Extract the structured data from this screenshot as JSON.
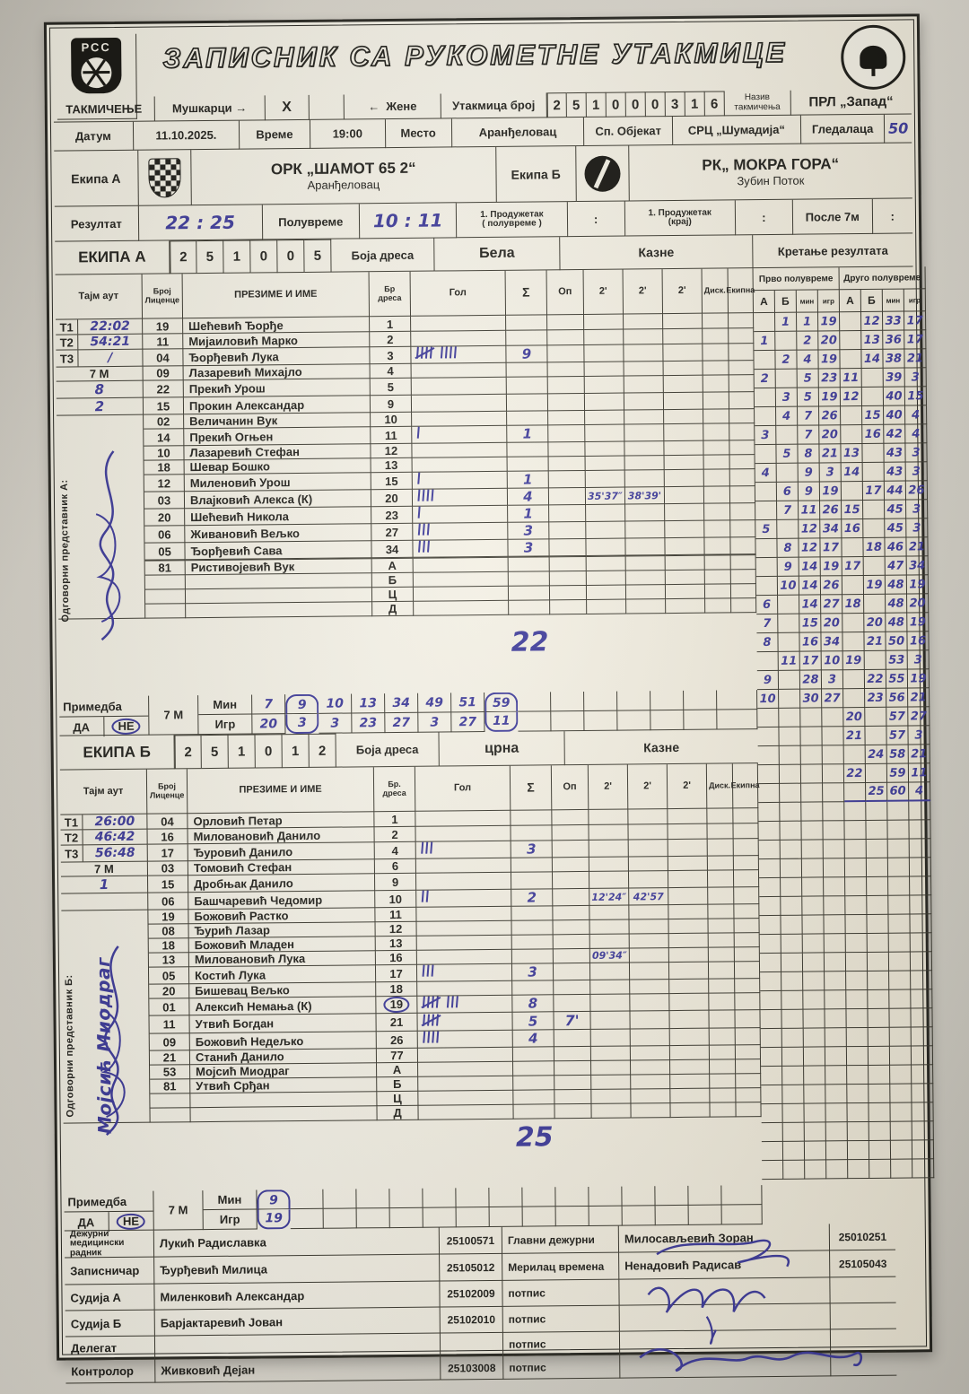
{
  "header": {
    "title": "ЗАПИСНИК СА РУКОМЕТНЕ УТАКМИЦЕ",
    "org_abbr": "РСС",
    "league_logo": "league-round-logo"
  },
  "competition_row": {
    "label": "ТАКМИЧЕЊЕ",
    "men_label": "Мушкарци",
    "arrow_right": "→",
    "men_mark": "X",
    "arrow_left": "←",
    "women_label": "Жене",
    "match_no_label": "Утакмица број",
    "match_no_digits": [
      "2",
      "5",
      "1",
      "0",
      "0",
      "0",
      "3",
      "1",
      "6"
    ],
    "comp_name_label1": "Назив",
    "comp_name_label2": "такмичења",
    "comp_name_value": "ПРЛ „Запад“"
  },
  "info_row": {
    "date_label": "Датум",
    "date": "11.10.2025.",
    "time_label": "Време",
    "time": "19:00",
    "place_label": "Место",
    "place": "Аранђеловац",
    "venue_label": "Сп. Објекат",
    "venue": "СРЦ „Шумадија“",
    "spectators_label": "Гледалаца",
    "spectators": "50"
  },
  "teams_row": {
    "team_a_label": "Екипа А",
    "team_a_name": "ОРК „ШАМОТ 65 2“",
    "team_a_city": "Аранђеловац",
    "team_b_label": "Екипа Б",
    "team_b_name": "РК„ МОКРА ГОРА“",
    "team_b_city": "Зубин Поток"
  },
  "result_row": {
    "label": "Резултат",
    "final": "22 : 25",
    "half_label": "Полувреме",
    "half": "10 : 11",
    "ot1_label": "1. Продужетак",
    "ot1_sub": "( полувреме )",
    "ot1": ":",
    "ot2_label": "1. Продужетак",
    "ot2_sub": "(крај)",
    "ot2": ":",
    "after7_label": "После 7м",
    "after7": ":"
  },
  "hdr": {
    "tajm": "Тајм аут",
    "lic1": "Број",
    "lic2": "Лиценце",
    "name": "ПРЕЗИМЕ И ИМЕ",
    "gol": "Гол",
    "sum": "Σ",
    "op": "Оп",
    "p2": "2'",
    "disk": "Диск.",
    "ekipna": "Екипна",
    "first": "Прво полувреме",
    "second": "Друго полувреме",
    "pcols": [
      "А",
      "Б",
      "мин",
      "игр"
    ]
  },
  "note_labels": {
    "label": "Примедба",
    "da": "ДА",
    "ne": "НЕ",
    "m7": "7 М",
    "min": "Мин",
    "igr": "Игр"
  },
  "team_a": {
    "band_label": "ЕКИПА А",
    "code_digits": [
      "2",
      "5",
      "1",
      "0",
      "0",
      "5"
    ],
    "jersey_label": "Боја дреса",
    "jersey_color": "Бела",
    "penalties_label": "Казне",
    "progress_label": "Кретање резултата",
    "dres_label1": "Бр",
    "dres_label2": "дреса",
    "timeouts": [
      {
        "tag": "Т1",
        "value": "22:02"
      },
      {
        "tag": "Т2",
        "value": "54:21"
      },
      {
        "tag": "Т3",
        "value": "∕"
      }
    ],
    "seven_m_label": "7 М",
    "seven_m": [
      "8",
      "2"
    ],
    "rep_label": "Одговорни представник А:",
    "total": "22",
    "players": [
      {
        "lic": "19",
        "name": "Шећевић Ђорђе",
        "dres": "1",
        "goals": 0,
        "sum": ""
      },
      {
        "lic": "11",
        "name": "Мијаиловић Марко",
        "dres": "2",
        "goals": 0,
        "sum": ""
      },
      {
        "lic": "04",
        "name": "Ђорђевић Лука",
        "dres": "3",
        "goals": 9,
        "sum": "9"
      },
      {
        "lic": "09",
        "name": "Лазаревић Михајло",
        "dres": "4",
        "goals": 0,
        "sum": ""
      },
      {
        "lic": "22",
        "name": "Прекић Урош",
        "dres": "5",
        "goals": 0,
        "sum": ""
      },
      {
        "lic": "15",
        "name": "Прокин Александар",
        "dres": "9",
        "goals": 0,
        "sum": ""
      },
      {
        "lic": "02",
        "name": "Величанин Вук",
        "dres": "10",
        "goals": 0,
        "sum": ""
      },
      {
        "lic": "14",
        "name": "Прекић Огњен",
        "dres": "11",
        "goals": 1,
        "sum": "1"
      },
      {
        "lic": "10",
        "name": "Лазаревић Стефан",
        "dres": "12",
        "goals": 0,
        "sum": ""
      },
      {
        "lic": "18",
        "name": "Шевар Бошко",
        "dres": "13",
        "goals": 0,
        "sum": ""
      },
      {
        "lic": "12",
        "name": "Миленовић Урош",
        "dres": "15",
        "goals": 1,
        "sum": "1"
      },
      {
        "lic": "03",
        "name": "Влајковић Алекса   (К)",
        "dres": "20",
        "goals": 4,
        "sum": "4",
        "p2": [
          "35'37″",
          "38'39'",
          ""
        ]
      },
      {
        "lic": "20",
        "name": "Шећевић Никола",
        "dres": "23",
        "goals": 1,
        "sum": "1"
      },
      {
        "lic": "06",
        "name": "Живановић Вељко",
        "dres": "27",
        "goals": 3,
        "sum": "3"
      },
      {
        "lic": "05",
        "name": "Ђорђевић Сава",
        "dres": "34",
        "goals": 3,
        "sum": "3"
      },
      {
        "lic": "",
        "name": "",
        "dres": "",
        "goals": 0,
        "sum": ""
      },
      {
        "lic": "81",
        "name": "Ристивојевић Вук",
        "dres": "А",
        "goals": 0,
        "sum": ""
      },
      {
        "lic": "",
        "name": "",
        "dres": "Б",
        "goals": 0,
        "sum": ""
      },
      {
        "lic": "",
        "name": "",
        "dres": "Ц",
        "goals": 0,
        "sum": ""
      },
      {
        "lic": "",
        "name": "",
        "dres": "Д",
        "goals": 0,
        "sum": ""
      }
    ],
    "note": {
      "min": [
        "7",
        "9",
        "10",
        "13",
        "34",
        "49",
        "51",
        "59"
      ],
      "igr": [
        "20",
        "3",
        "3",
        "23",
        "27",
        "3",
        "27",
        "11"
      ],
      "circled": [
        1,
        7
      ],
      "ne_circled": true
    }
  },
  "team_b": {
    "band_label": "ЕКИПА Б",
    "code_digits": [
      "2",
      "5",
      "1",
      "0",
      "1",
      "2"
    ],
    "jersey_label": "Боја дреса",
    "jersey_color": "црна",
    "penalties_label": "Казне",
    "dres_label1": "Бр.",
    "dres_label2": "дреса",
    "timeouts": [
      {
        "tag": "Т1",
        "value": "26:00"
      },
      {
        "tag": "Т2",
        "value": "46:42"
      },
      {
        "tag": "Т3",
        "value": "56:48"
      }
    ],
    "seven_m_label": "7 М",
    "seven_m": [
      "1",
      ""
    ],
    "rep_label": "Одговорни представник Б:",
    "rep_signed_name": "Мојсић Миодраг",
    "total": "25",
    "players": [
      {
        "lic": "04",
        "name": "Орловић Петар",
        "dres": "1",
        "goals": 0,
        "sum": ""
      },
      {
        "lic": "16",
        "name": "Миловановић Данило",
        "dres": "2",
        "goals": 0,
        "sum": ""
      },
      {
        "lic": "17",
        "name": "Ђуровић Данило",
        "dres": "4",
        "goals": 3,
        "sum": "3"
      },
      {
        "lic": "03",
        "name": "Томовић Стефан",
        "dres": "6",
        "goals": 0,
        "sum": ""
      },
      {
        "lic": "15",
        "name": "Дробњак Данило",
        "dres": "9",
        "goals": 0,
        "sum": ""
      },
      {
        "lic": "06",
        "name": "Башчаревић Чедомир",
        "dres": "10",
        "goals": 2,
        "sum": "2",
        "p2": [
          "12'24″",
          "42'57",
          ""
        ]
      },
      {
        "lic": "19",
        "name": "Божовић Растко",
        "dres": "11",
        "goals": 0,
        "sum": ""
      },
      {
        "lic": "08",
        "name": "Ђурић Лазар",
        "dres": "12",
        "goals": 0,
        "sum": ""
      },
      {
        "lic": "18",
        "name": "Божовић Младен",
        "dres": "13",
        "goals": 0,
        "sum": ""
      },
      {
        "lic": "13",
        "name": "Миловановић Лука",
        "dres": "16",
        "goals": 0,
        "sum": "",
        "p2": [
          "09'34″",
          "",
          ""
        ]
      },
      {
        "lic": "05",
        "name": "Костић Лука",
        "dres": "17",
        "goals": 3,
        "sum": "3"
      },
      {
        "lic": "20",
        "name": "Бишевац Вељко",
        "dres": "18",
        "goals": 0,
        "sum": ""
      },
      {
        "lic": "01",
        "name": "Алексић Немања (К)",
        "dres": "19",
        "dres_circled": true,
        "goals": 8,
        "sum": "8"
      },
      {
        "lic": "11",
        "name": "Утвић Богдан",
        "dres": "21",
        "goals": 5,
        "sum": "5",
        "op": "7'"
      },
      {
        "lic": "09",
        "name": "Божовић Недељко",
        "dres": "26",
        "goals": 4,
        "sum": "4"
      },
      {
        "lic": "21",
        "name": "Станић Данило",
        "dres": "77",
        "goals": 0,
        "sum": ""
      },
      {
        "lic": "53",
        "name": "Мојсић Миодраг",
        "dres": "А",
        "goals": 0,
        "sum": ""
      },
      {
        "lic": "81",
        "name": "Утвић Срђан",
        "dres": "Б",
        "goals": 0,
        "sum": ""
      },
      {
        "lic": "",
        "name": "",
        "dres": "Ц",
        "goals": 0,
        "sum": ""
      },
      {
        "lic": "",
        "name": "",
        "dres": "Д",
        "goals": 0,
        "sum": ""
      }
    ],
    "note": {
      "min": [
        "9"
      ],
      "igr": [
        "19"
      ],
      "circled": [
        0
      ],
      "ne_circled": true
    }
  },
  "progression": {
    "rows": [
      [
        "",
        "1",
        "1",
        "19",
        "",
        "12",
        "33",
        "17"
      ],
      [
        "1",
        "",
        "2",
        "20",
        "",
        "13",
        "36",
        "17"
      ],
      [
        "",
        "2",
        "4",
        "19",
        "",
        "14",
        "38",
        "21"
      ],
      [
        "2",
        "",
        "5",
        "23",
        "11",
        "",
        "39",
        "3"
      ],
      [
        "",
        "3",
        "5",
        "19",
        "12",
        "",
        "40",
        "15"
      ],
      [
        "",
        "4",
        "7",
        "26",
        "",
        "15",
        "40",
        "4"
      ],
      [
        "3",
        "",
        "7",
        "20",
        "",
        "16",
        "42",
        "4"
      ],
      [
        "",
        "5",
        "8",
        "21",
        "13",
        "",
        "43",
        "3"
      ],
      [
        "4",
        "",
        "9",
        "3",
        "14",
        "",
        "43",
        "3"
      ],
      [
        "",
        "6",
        "9",
        "19",
        "",
        "17",
        "44",
        "26"
      ],
      [
        "",
        "7",
        "11",
        "26",
        "15",
        "",
        "45",
        "3"
      ],
      [
        "5",
        "",
        "12",
        "34",
        "16",
        "",
        "45",
        "3"
      ],
      [
        "",
        "8",
        "12",
        "17",
        "",
        "18",
        "46",
        "21"
      ],
      [
        "",
        "9",
        "14",
        "19",
        "17",
        "",
        "47",
        "34"
      ],
      [
        "",
        "10",
        "14",
        "26",
        "",
        "19",
        "48",
        "19"
      ],
      [
        "6",
        "",
        "14",
        "27",
        "18",
        "",
        "48",
        "20"
      ],
      [
        "7",
        "",
        "15",
        "20",
        "",
        "20",
        "48",
        "19"
      ],
      [
        "8",
        "",
        "16",
        "34",
        "",
        "21",
        "50",
        "16"
      ],
      [
        "",
        "11",
        "17",
        "10",
        "19",
        "",
        "53",
        "3"
      ],
      [
        "9",
        "",
        "28",
        "3",
        "",
        "22",
        "55",
        "19"
      ],
      [
        "10",
        "",
        "30",
        "27",
        "",
        "23",
        "56",
        "21"
      ],
      [
        "",
        "",
        "",
        "",
        "20",
        "",
        "57",
        "27"
      ],
      [
        "",
        "",
        "",
        "",
        "21",
        "",
        "57",
        "3"
      ],
      [
        "",
        "",
        "",
        "",
        "",
        "24",
        "58",
        "21"
      ],
      [
        "",
        "",
        "",
        "",
        "22",
        "",
        "59",
        "11"
      ],
      [
        "",
        "",
        "",
        "",
        "",
        "25",
        "60",
        "4"
      ]
    ]
  },
  "officials": {
    "rows": [
      {
        "l1": "Дежурни",
        "l2": "медицински радник",
        "name": "Лукић Радиславка",
        "id": "25100571",
        "mid": "Главни дежурни",
        "rname": "Милосављевић Зоран",
        "rid": "25010251"
      },
      {
        "l1": "Записничар",
        "l2": "",
        "name": "Ђурђевић Милица",
        "id": "25105012",
        "mid": "Мерилац времена",
        "rname": "Ненадовић Радисав",
        "rid": "25105043"
      },
      {
        "l1": "Судија А",
        "l2": "",
        "name": "Миленковић Александар",
        "id": "25102009",
        "mid": "потпис",
        "rname": "",
        "rid": ""
      },
      {
        "l1": "Судија Б",
        "l2": "",
        "name": "Барјактаревић Јован",
        "id": "25102010",
        "mid": "потпис",
        "rname": "",
        "rid": ""
      },
      {
        "l1": "Делегат",
        "l2": "",
        "name": "",
        "id": "",
        "mid": "потпис",
        "rname": "",
        "rid": ""
      },
      {
        "l1": "Контролор",
        "l2": "",
        "name": "Живковић Дејан",
        "id": "25103008",
        "mid": "потпис",
        "rname": "",
        "rid": ""
      }
    ]
  }
}
